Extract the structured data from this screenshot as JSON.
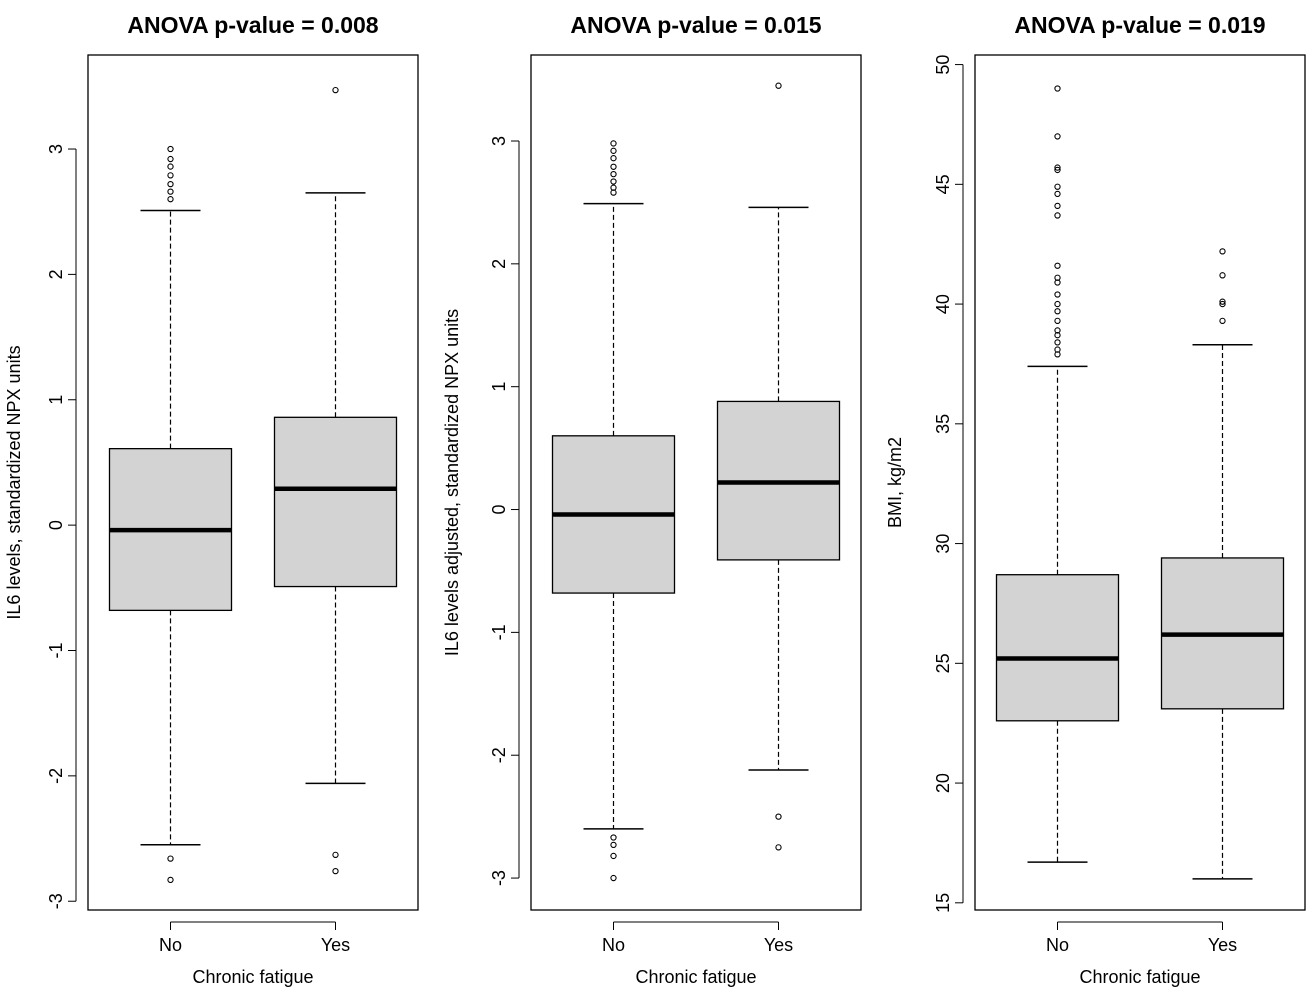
{
  "chart_data": [
    {
      "type": "box",
      "title": "ANOVA p-value = 0.008",
      "xlabel": "Chronic fatigue",
      "ylabel": "IL6 levels, standardized NPX units",
      "categories": [
        "No",
        "Yes"
      ],
      "ylim": [
        -3.07,
        3.75
      ],
      "yticks": [
        -3,
        -2,
        -1,
        0,
        1,
        2,
        3
      ],
      "ytick_labels": [
        "-3",
        "-2",
        "-1",
        "0",
        "1",
        "2",
        "3"
      ],
      "box_color": "#d3d3d3",
      "boxes": [
        {
          "category": "No",
          "whisker_low": -2.55,
          "q1": -0.68,
          "median": -0.04,
          "q3": 0.61,
          "whisker_high": 2.51,
          "outliers": [
            2.6,
            2.66,
            2.72,
            2.79,
            2.86,
            2.92,
            3.0,
            -2.66,
            -2.83
          ]
        },
        {
          "category": "Yes",
          "whisker_low": -2.06,
          "q1": -0.49,
          "median": 0.29,
          "q3": 0.86,
          "whisker_high": 2.65,
          "outliers": [
            3.47,
            -2.63,
            -2.76
          ]
        }
      ]
    },
    {
      "type": "box",
      "title": "ANOVA p-value = 0.015",
      "xlabel": "Chronic fatigue",
      "ylabel": "IL6 levels adjusted, standardized NPX units",
      "categories": [
        "No",
        "Yes"
      ],
      "ylim": [
        -3.26,
        3.7
      ],
      "yticks": [
        -3,
        -2,
        -1,
        0,
        1,
        2,
        3
      ],
      "ytick_labels": [
        "-3",
        "-2",
        "-1",
        "0",
        "1",
        "2",
        "3"
      ],
      "box_color": "#d3d3d3",
      "boxes": [
        {
          "category": "No",
          "whisker_low": -2.6,
          "q1": -0.68,
          "median": -0.04,
          "q3": 0.6,
          "whisker_high": 2.49,
          "outliers": [
            2.58,
            2.62,
            2.67,
            2.73,
            2.79,
            2.86,
            2.92,
            2.98,
            -2.67,
            -2.73,
            -2.82,
            -3.0
          ]
        },
        {
          "category": "Yes",
          "whisker_low": -2.12,
          "q1": -0.41,
          "median": 0.22,
          "q3": 0.88,
          "whisker_high": 2.46,
          "outliers": [
            3.45,
            -2.5,
            -2.75
          ]
        }
      ]
    },
    {
      "type": "box",
      "title": "ANOVA p-value = 0.019",
      "xlabel": "Chronic fatigue",
      "ylabel": "BMI, kg/m2",
      "categories": [
        "No",
        "Yes"
      ],
      "ylim": [
        14.7,
        50.4
      ],
      "yticks": [
        15,
        20,
        25,
        30,
        35,
        40,
        45,
        50
      ],
      "ytick_labels": [
        "15",
        "20",
        "25",
        "30",
        "35",
        "40",
        "45",
        "50"
      ],
      "box_color": "#d3d3d3",
      "boxes": [
        {
          "category": "No",
          "whisker_low": 16.7,
          "q1": 22.6,
          "median": 25.2,
          "q3": 28.7,
          "whisker_high": 37.4,
          "outliers": [
            37.9,
            38.1,
            38.4,
            38.7,
            38.9,
            39.3,
            39.7,
            40.0,
            40.4,
            40.9,
            41.1,
            41.6,
            43.7,
            44.1,
            44.6,
            44.9,
            45.6,
            45.7,
            47.0,
            49.0
          ]
        },
        {
          "category": "Yes",
          "whisker_low": 16.0,
          "q1": 23.1,
          "median": 26.2,
          "q3": 29.4,
          "whisker_high": 38.3,
          "outliers": [
            39.3,
            40.0,
            40.1,
            41.2,
            42.2
          ]
        }
      ]
    }
  ]
}
